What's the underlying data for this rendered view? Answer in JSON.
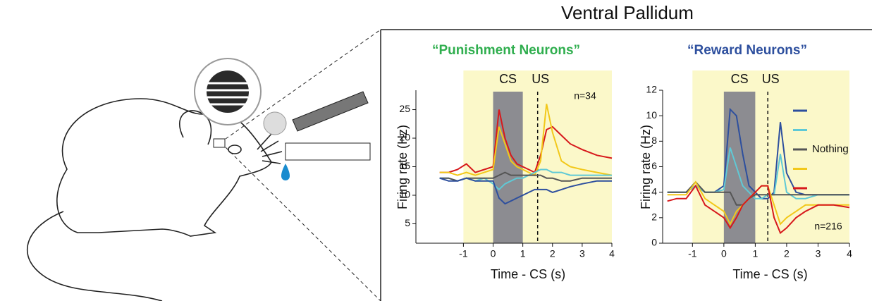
{
  "figure_title": "Ventral Pallidum",
  "chart_data": [
    {
      "type": "line",
      "title": "“Punishment Neurons”",
      "title_color": "#2fae4e",
      "x_label": "Time - CS (s)",
      "y_label": "Firing rate (Hz)",
      "xlim": [
        -2.6,
        4
      ],
      "ylim": [
        1.6,
        28.4
      ],
      "xticks": [
        -1,
        0,
        1,
        2,
        3,
        4
      ],
      "yticks": [
        5,
        10,
        15,
        20,
        25
      ],
      "shade_span": [
        -1,
        4
      ],
      "cs_span": [
        0,
        1
      ],
      "us_time": 1.5,
      "annotations": [
        "CS",
        "US",
        "n=34"
      ],
      "x": [
        -1.8,
        -1.5,
        -1.2,
        -0.9,
        -0.6,
        -0.3,
        0,
        0.2,
        0.4,
        0.6,
        0.8,
        1,
        1.2,
        1.4,
        1.6,
        1.8,
        2,
        2.3,
        2.6,
        3,
        3.5,
        4
      ],
      "series": [
        {
          "color": "#d7191c",
          "values": [
            14,
            14,
            14.5,
            15.5,
            14,
            14.5,
            15,
            25,
            20,
            17,
            15.5,
            15,
            14.5,
            14,
            17,
            21.5,
            22,
            20.5,
            19,
            18,
            17,
            16.5
          ]
        },
        {
          "color": "#f2c81a",
          "values": [
            14,
            14,
            13.5,
            14,
            13.5,
            14,
            14.5,
            22,
            19,
            16,
            15,
            14.5,
            14,
            13.5,
            16,
            26,
            21,
            16,
            15,
            14.5,
            14,
            13.5
          ]
        },
        {
          "color": "#5fc9d6",
          "values": [
            13,
            13,
            12.5,
            13,
            12.5,
            13,
            12,
            11,
            12,
            12.5,
            13,
            13,
            13.5,
            14,
            14.5,
            14.5,
            14,
            14,
            13.5,
            13.5,
            13.5,
            13.5
          ]
        },
        {
          "color": "#555555",
          "values": [
            13,
            13,
            12.5,
            13,
            13,
            13,
            13,
            13.5,
            14,
            13.5,
            13.5,
            13.5,
            13.5,
            13.5,
            13.5,
            13,
            13,
            12.5,
            12.5,
            13,
            13,
            13
          ]
        },
        {
          "color": "#2d4f9e",
          "values": [
            13,
            12.5,
            12.5,
            13,
            12.5,
            12.5,
            12.5,
            9.5,
            8.5,
            9,
            9.5,
            10,
            10.5,
            11,
            11,
            11,
            10.5,
            11,
            11.5,
            12,
            12.5,
            12.5
          ]
        }
      ]
    },
    {
      "type": "line",
      "title": "“Reward Neurons”",
      "title_color": "#2d4f9e",
      "x_label": "Time - CS (s)",
      "y_label": "Firing rate (Hz)",
      "xlim": [
        -1.95,
        4
      ],
      "ylim": [
        0,
        12
      ],
      "xticks": [
        -1,
        0,
        1,
        2,
        3,
        4
      ],
      "yticks": [
        0,
        2,
        4,
        6,
        8,
        10,
        12
      ],
      "shade_span": [
        -1,
        4
      ],
      "cs_span": [
        0,
        1
      ],
      "us_time": 1.4,
      "annotations": [
        "CS",
        "US",
        "n=216"
      ],
      "x": [
        -1.8,
        -1.5,
        -1.2,
        -0.9,
        -0.6,
        -0.3,
        0,
        0.2,
        0.4,
        0.6,
        0.8,
        1,
        1.2,
        1.4,
        1.6,
        1.8,
        2,
        2.3,
        2.6,
        3,
        3.5,
        4
      ],
      "series": [
        {
          "color": "#2d4f9e",
          "values": [
            4,
            4,
            4,
            4.5,
            4,
            4,
            4.5,
            10.5,
            10,
            7,
            4.5,
            4,
            3.5,
            3.5,
            4,
            9.5,
            5.5,
            4,
            3.8,
            3.8,
            3.8,
            3.8
          ]
        },
        {
          "color": "#5fc9d6",
          "values": [
            4,
            4,
            4,
            4.5,
            4,
            4,
            4.2,
            7.5,
            6,
            4.5,
            4,
            3.5,
            3.5,
            3.8,
            3.8,
            7,
            4,
            3.5,
            3.5,
            3.8,
            3.8,
            3.8
          ]
        },
        {
          "name": "Nothing",
          "color": "#555555",
          "values": [
            4,
            4,
            4,
            4.8,
            4,
            4,
            4,
            4,
            3,
            3,
            3.5,
            3.8,
            3.8,
            3.8,
            3.8,
            3.8,
            3.8,
            3.8,
            3.8,
            3.8,
            3.8,
            3.8
          ]
        },
        {
          "color": "#f2c81a",
          "values": [
            3.8,
            3.8,
            3.8,
            4.8,
            3.5,
            3,
            2.5,
            1.5,
            2.5,
            3,
            3.5,
            4,
            4.5,
            4.5,
            3,
            1.5,
            2,
            2.5,
            3,
            3,
            3,
            3
          ]
        },
        {
          "color": "#d7191c",
          "values": [
            3.3,
            3.5,
            3.5,
            4.5,
            3,
            2.5,
            2,
            1.2,
            2,
            3,
            3.5,
            4,
            4.5,
            4.5,
            2,
            0.8,
            1.2,
            2,
            2.5,
            3,
            3,
            2.8
          ]
        }
      ]
    }
  ]
}
